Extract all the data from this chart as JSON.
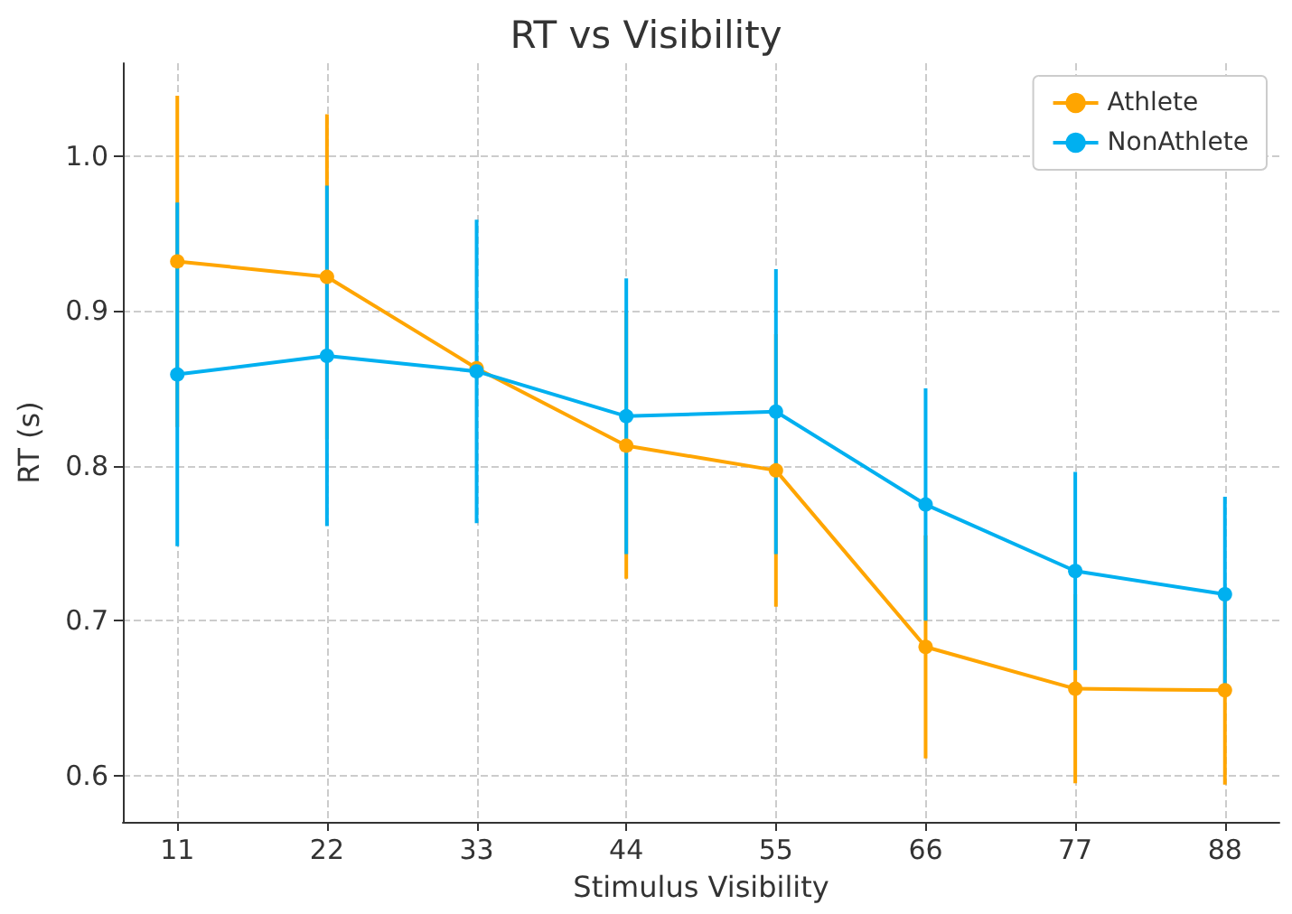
{
  "chart_data": {
    "type": "line",
    "title": "RT vs Visibility",
    "xlabel": "Stimulus Visibility",
    "ylabel": "RT (s)",
    "x": [
      11,
      22,
      33,
      44,
      55,
      66,
      77,
      88
    ],
    "series": [
      {
        "name": "Athlete",
        "color": "#ffa500",
        "values": [
          0.932,
          0.922,
          0.863,
          0.813,
          0.797,
          0.683,
          0.656,
          0.655
        ],
        "errors": [
          0.107,
          0.105,
          null,
          0.086,
          0.088,
          0.072,
          0.061,
          0.061
        ]
      },
      {
        "name": "NonAthlete",
        "color": "#00b0f0",
        "values": [
          0.859,
          0.871,
          0.861,
          0.832,
          0.835,
          0.775,
          0.732,
          0.717
        ],
        "errors": [
          0.111,
          0.11,
          0.098,
          0.089,
          0.092,
          0.075,
          0.064,
          0.063
        ]
      }
    ],
    "xlim": [
      7,
      92
    ],
    "xticks": [
      11,
      22,
      33,
      44,
      55,
      66,
      77,
      88
    ],
    "ylim": [
      0.57,
      1.06
    ],
    "yticks": [
      0.6,
      0.7,
      0.8,
      0.9,
      {
        "value": 1,
        "label": "1.0"
      }
    ],
    "grid": true,
    "legend": "top right",
    "marker": "circle",
    "line_style": "solid"
  }
}
